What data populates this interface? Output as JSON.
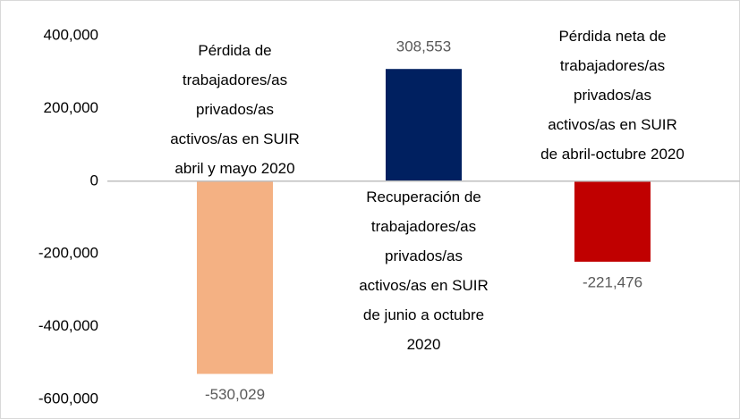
{
  "chart_data": {
    "type": "bar",
    "categories": [
      "Pérdida de trabajadores/as privados/as activos/as en SUIR abril y mayo 2020",
      "Recuperación de trabajadores/as privados/as activos/as en SUIR de junio a octubre 2020",
      "Pérdida neta de trabajadores/as privados/as activos/as en SUIR de abril-octubre 2020"
    ],
    "values": [
      -530029,
      308553,
      -221476
    ],
    "value_labels": [
      "-530,029",
      "308,553",
      "-221,476"
    ],
    "colors": [
      "#f4b183",
      "#002060",
      "#c00000"
    ],
    "ylim": [
      -600000,
      400000
    ],
    "yticks": [
      {
        "value": -600000,
        "label": "-600,000"
      },
      {
        "value": -400000,
        "label": "-400,000"
      },
      {
        "value": -200000,
        "label": "-200,000"
      },
      0,
      {
        "value": 200000,
        "label": "200,000"
      },
      {
        "value": 400000,
        "label": "400,000"
      }
    ]
  }
}
